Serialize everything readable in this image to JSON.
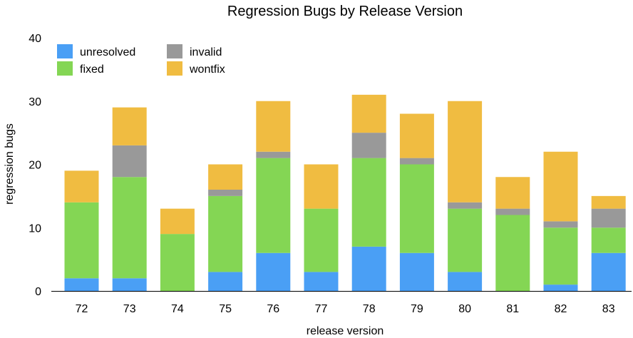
{
  "chart_data": {
    "type": "bar",
    "stacked": true,
    "title": "Regression Bugs by Release Version",
    "xlabel": "release version",
    "ylabel": "regression bugs",
    "ylim": [
      0,
      40
    ],
    "yticks": [
      0,
      10,
      20,
      30,
      40
    ],
    "grid": false,
    "legend_position": "top-left",
    "categories": [
      "72",
      "73",
      "74",
      "75",
      "76",
      "77",
      "78",
      "79",
      "80",
      "81",
      "82",
      "83"
    ],
    "series": [
      {
        "name": "unresolved",
        "color": "#4a9ff5",
        "values": [
          2,
          2,
          0,
          3,
          6,
          3,
          7,
          6,
          3,
          0,
          1,
          6
        ]
      },
      {
        "name": "fixed",
        "color": "#84d654",
        "values": [
          12,
          16,
          9,
          12,
          15,
          10,
          14,
          14,
          10,
          12,
          9,
          4
        ]
      },
      {
        "name": "invalid",
        "color": "#999999",
        "values": [
          0,
          5,
          0,
          1,
          1,
          0,
          4,
          1,
          1,
          1,
          1,
          3
        ]
      },
      {
        "name": "wontfix",
        "color": "#f0bc41",
        "values": [
          5,
          6,
          4,
          4,
          8,
          7,
          6,
          7,
          16,
          5,
          11,
          2
        ]
      }
    ]
  }
}
